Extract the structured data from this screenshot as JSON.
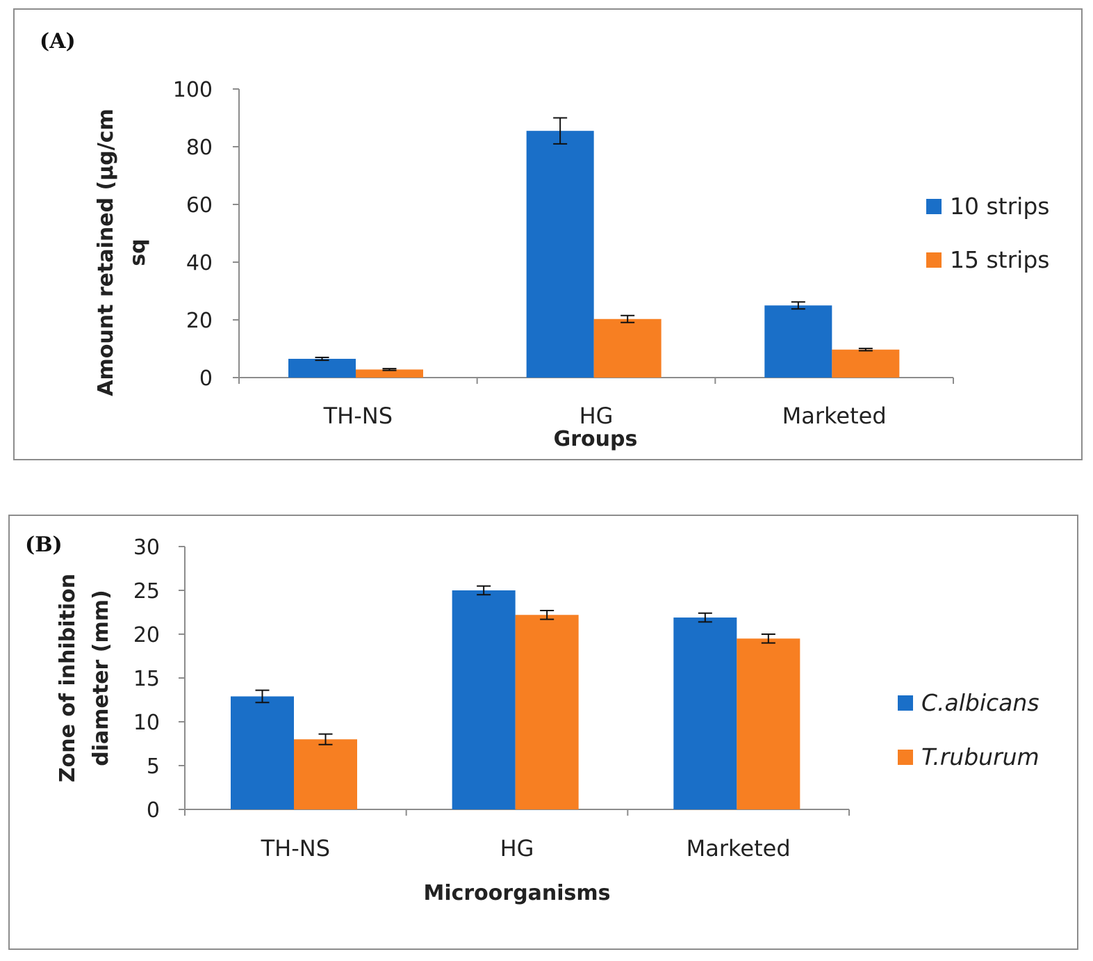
{
  "chart_data": [
    {
      "panel_label": "(A)",
      "type": "bar",
      "title": "",
      "xlabel": "Groups",
      "ylabel": "Amount retained (µg/cm sq)",
      "categories": [
        "TH-NS",
        "HG",
        "Marketed"
      ],
      "series": [
        {
          "name": "10 strips",
          "color": "#1a6fc8",
          "values": [
            6.5,
            85.5,
            25
          ],
          "errors": [
            0.5,
            4.5,
            1.2
          ]
        },
        {
          "name": "15 strips",
          "color": "#f77f22",
          "values": [
            2.8,
            20.3,
            9.7
          ],
          "errors": [
            0.3,
            1.2,
            0.4
          ]
        }
      ],
      "ylim": [
        0,
        100
      ],
      "yticks": [
        0,
        20,
        40,
        60,
        80,
        100
      ],
      "grid": false,
      "legend": "right"
    },
    {
      "panel_label": "(B)",
      "type": "bar",
      "title": "",
      "xlabel": "Microorganisms",
      "ylabel": "Zone of inhibition diameter (mm)",
      "categories": [
        "TH-NS",
        "HG",
        "Marketed"
      ],
      "series": [
        {
          "name": "C.albicans",
          "color": "#1a6fc8",
          "values": [
            12.9,
            25,
            21.9
          ],
          "errors": [
            0.7,
            0.5,
            0.5
          ]
        },
        {
          "name": "T.ruburum",
          "color": "#f77f22",
          "values": [
            8,
            22.2,
            19.5
          ],
          "errors": [
            0.6,
            0.5,
            0.5
          ]
        }
      ],
      "ylim": [
        0,
        30
      ],
      "yticks": [
        0,
        5,
        10,
        15,
        20,
        25,
        30
      ],
      "grid": false,
      "legend": "right"
    }
  ]
}
